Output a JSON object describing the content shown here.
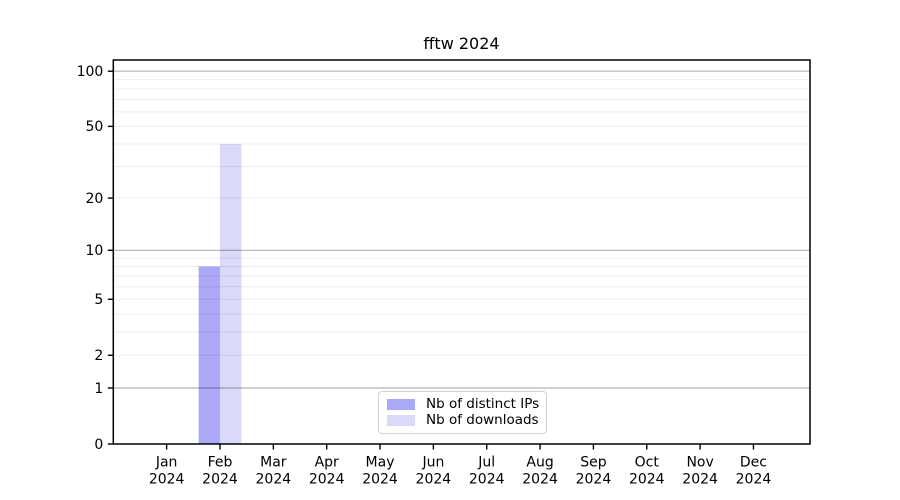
{
  "chart_data": {
    "type": "bar",
    "title": "fftw 2024",
    "scale": "log1p",
    "xlabel": "",
    "ylabel": "",
    "year": "2024",
    "months": [
      "Jan",
      "Feb",
      "Mar",
      "Apr",
      "May",
      "Jun",
      "Jul",
      "Aug",
      "Sep",
      "Oct",
      "Nov",
      "Dec"
    ],
    "categories": [
      "Jan 2024",
      "Feb 2024",
      "Mar 2024",
      "Apr 2024",
      "May 2024",
      "Jun 2024",
      "Jul 2024",
      "Aug 2024",
      "Sep 2024",
      "Oct 2024",
      "Nov 2024",
      "Dec 2024"
    ],
    "series": [
      {
        "name": "Nb of distinct IPs",
        "color": "#a9a9f7",
        "values": [
          0,
          8,
          0,
          0,
          0,
          0,
          0,
          0,
          0,
          0,
          0,
          0
        ]
      },
      {
        "name": "Nb of downloads",
        "color": "#d9d9f8",
        "values": [
          0,
          40,
          0,
          0,
          0,
          0,
          0,
          0,
          0,
          0,
          0,
          0
        ]
      }
    ],
    "yticks": [
      0,
      1,
      2,
      5,
      10,
      20,
      50,
      100
    ],
    "ytick_labels": [
      "0",
      "1",
      "2",
      "5",
      "10",
      "20",
      "50",
      "100"
    ],
    "ylim": [
      0,
      115
    ],
    "grid": {
      "major": [
        1,
        10,
        100
      ],
      "minor": [
        2,
        3,
        4,
        5,
        6,
        7,
        8,
        9,
        20,
        30,
        40,
        50,
        60,
        70,
        80,
        90
      ],
      "major_color": "#b0b0b0",
      "minor_color": "#ececec"
    },
    "legend_position": "lower center"
  },
  "legend": {
    "items": [
      {
        "label": "Nb of distinct IPs",
        "color": "#a9a9f7"
      },
      {
        "label": "Nb of downloads",
        "color": "#d9d9f8"
      }
    ]
  }
}
